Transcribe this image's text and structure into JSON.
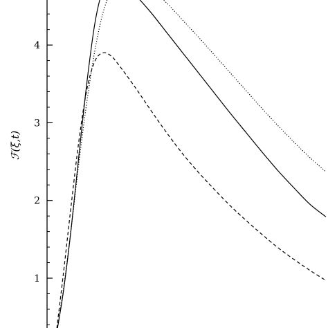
{
  "chart_data": {
    "type": "line",
    "title": "",
    "xlabel": "",
    "ylabel": "ℱ(ξ,t)",
    "ylim": [
      0.2,
      4.85
    ],
    "xlim": [
      -0.3,
      3.4
    ],
    "y_ticks": [
      {
        "value": 1,
        "label": "1"
      },
      {
        "value": 2,
        "label": "2"
      },
      {
        "value": 3,
        "label": "3"
      },
      {
        "value": 4,
        "label": "4"
      }
    ],
    "grid": false,
    "legend": "none",
    "series": [
      {
        "style": "solid",
        "points": [
          [
            0,
            0.2
          ],
          [
            0.1,
            0.82
          ],
          [
            0.2,
            1.65
          ],
          [
            0.3,
            2.62
          ],
          [
            0.4,
            3.55
          ],
          [
            0.5,
            4.3
          ],
          [
            0.6,
            4.72
          ],
          [
            0.7,
            4.84
          ],
          [
            0.8,
            4.82
          ],
          [
            0.9,
            4.75
          ],
          [
            1.0,
            4.65
          ],
          [
            1.2,
            4.42
          ],
          [
            1.4,
            4.16
          ],
          [
            1.6,
            3.9
          ],
          [
            1.8,
            3.64
          ],
          [
            2.0,
            3.38
          ],
          [
            2.2,
            3.12
          ],
          [
            2.4,
            2.87
          ],
          [
            2.6,
            2.62
          ],
          [
            2.8,
            2.38
          ],
          [
            3.0,
            2.16
          ],
          [
            3.2,
            1.95
          ],
          [
            3.4,
            1.79
          ]
        ]
      },
      {
        "style": "dotted",
        "points": [
          [
            0,
            0.2
          ],
          [
            0.1,
            0.85
          ],
          [
            0.2,
            1.65
          ],
          [
            0.3,
            2.52
          ],
          [
            0.4,
            3.3
          ],
          [
            0.5,
            3.95
          ],
          [
            0.6,
            4.42
          ],
          [
            0.7,
            4.7
          ],
          [
            0.8,
            4.85
          ],
          [
            1.0,
            4.84
          ],
          [
            1.2,
            4.72
          ],
          [
            1.4,
            4.54
          ],
          [
            1.6,
            4.32
          ],
          [
            1.8,
            4.1
          ],
          [
            2.0,
            3.87
          ],
          [
            2.2,
            3.64
          ],
          [
            2.4,
            3.41
          ],
          [
            2.6,
            3.18
          ],
          [
            2.8,
            2.96
          ],
          [
            3.0,
            2.75
          ],
          [
            3.2,
            2.55
          ],
          [
            3.4,
            2.37
          ]
        ]
      },
      {
        "style": "dashed",
        "points": [
          [
            0,
            0.2
          ],
          [
            0.1,
            1.05
          ],
          [
            0.2,
            1.95
          ],
          [
            0.3,
            2.8
          ],
          [
            0.4,
            3.45
          ],
          [
            0.5,
            3.8
          ],
          [
            0.6,
            3.9
          ],
          [
            0.7,
            3.86
          ],
          [
            0.8,
            3.74
          ],
          [
            1.0,
            3.46
          ],
          [
            1.2,
            3.16
          ],
          [
            1.4,
            2.87
          ],
          [
            1.6,
            2.6
          ],
          [
            1.8,
            2.36
          ],
          [
            2.0,
            2.14
          ],
          [
            2.2,
            1.93
          ],
          [
            2.4,
            1.74
          ],
          [
            2.6,
            1.56
          ],
          [
            2.8,
            1.39
          ],
          [
            3.0,
            1.24
          ],
          [
            3.2,
            1.1
          ],
          [
            3.4,
            0.97
          ]
        ]
      }
    ]
  }
}
